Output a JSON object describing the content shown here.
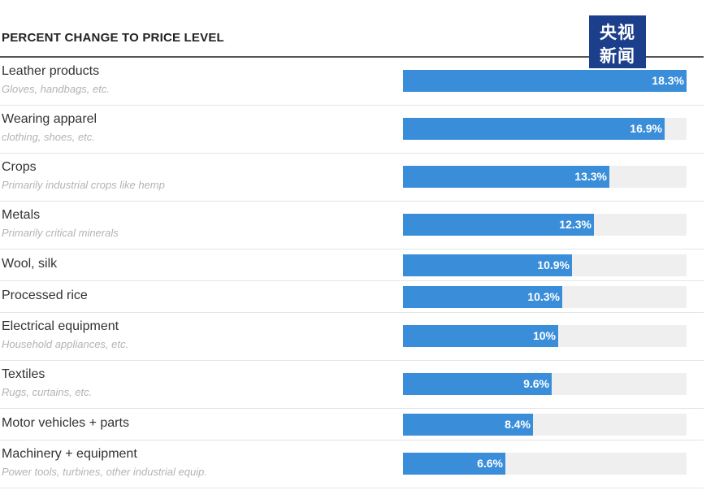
{
  "header": {
    "title": "PERCENT CHANGE TO PRICE LEVEL"
  },
  "watermark": {
    "line1": "央视",
    "line2": "新闻"
  },
  "colors": {
    "bar": "#3a8ed9",
    "track": "#efefef",
    "watermark_bg": "#1c3f8c"
  },
  "chart_data": {
    "type": "bar",
    "orientation": "horizontal",
    "title": "PERCENT CHANGE TO PRICE LEVEL",
    "xlim": [
      0,
      18.3
    ],
    "grid": false,
    "categories": [
      "Leather products",
      "Wearing apparel",
      "Crops",
      "Metals",
      "Wool, silk",
      "Processed rice",
      "Electrical equipment",
      "Textiles",
      "Motor vehicles + parts",
      "Machinery + equipment"
    ],
    "subtitles": [
      "Gloves, handbags, etc.",
      "clothing, shoes, etc.",
      "Primarily industrial crops like hemp",
      "Primarily critical minerals",
      "",
      "",
      "Household appliances, etc.",
      "Rugs, curtains, etc.",
      "",
      "Power tools, turbines, other industrial equip."
    ],
    "values": [
      18.3,
      16.9,
      13.3,
      12.3,
      10.9,
      10.3,
      10,
      9.6,
      8.4,
      6.6
    ],
    "value_labels": [
      "18.3%",
      "16.9%",
      "13.3%",
      "12.3%",
      "10.9%",
      "10.3%",
      "10%",
      "9.6%",
      "8.4%",
      "6.6%"
    ]
  }
}
